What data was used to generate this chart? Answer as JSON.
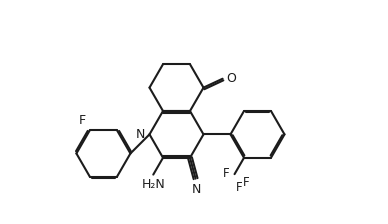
{
  "bg": "#ffffff",
  "lc": "#1c1c1c",
  "lw": 1.5,
  "fs": 9.0,
  "bl": 0.195,
  "dbo": 0.018,
  "figsize": [
    3.88,
    2.24
  ],
  "dpi": 100,
  "xlim": [
    0,
    3.88
  ],
  "ylim": [
    0,
    2.24
  ]
}
